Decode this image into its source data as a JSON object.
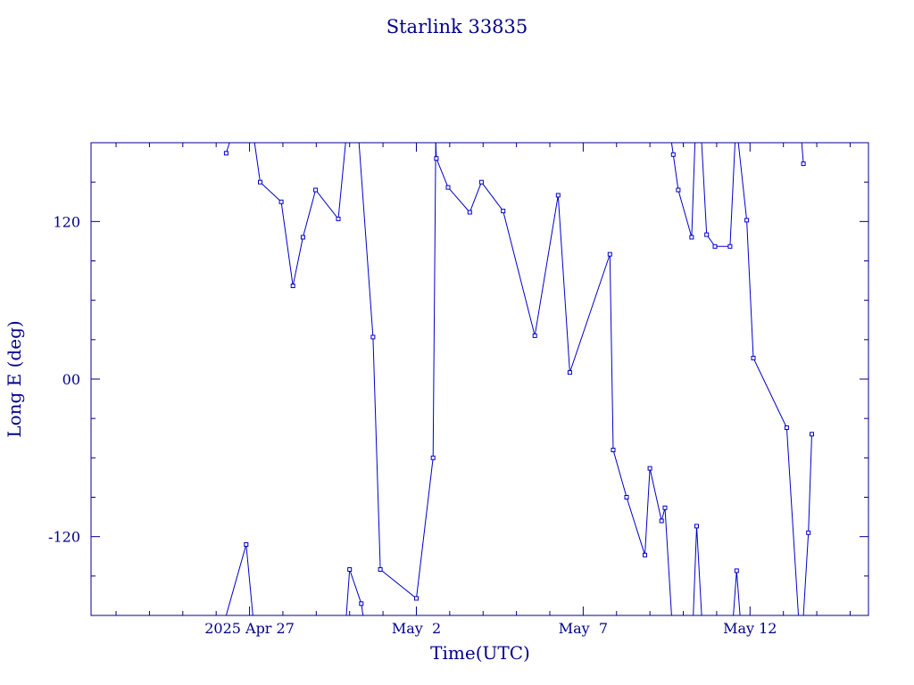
{
  "chart_data": {
    "type": "line",
    "title": "Starlink 33835",
    "xlabel": "Time(UTC)",
    "ylabel": "Long E (deg)",
    "xlim": [
      -4.75,
      18.55
    ],
    "ylim": [
      -180,
      180
    ],
    "x_ticks": [
      {
        "value": 0,
        "label": "2025 Apr 27"
      },
      {
        "value": 5,
        "label": "May  2"
      },
      {
        "value": 10,
        "label": "May  7"
      },
      {
        "value": 15,
        "label": "May 12"
      }
    ],
    "y_ticks": [
      {
        "value": 120,
        "label": "120"
      },
      {
        "value": 0,
        "label": "00"
      },
      {
        "value": -120,
        "label": "-120"
      }
    ],
    "grid": false,
    "line_color": "#0000cc",
    "axis_color": "#00008b",
    "series": [
      {
        "points": [
          [
            -0.7,
            172
          ],
          [
            -0.6,
            180
          ],
          null,
          [
            0.15,
            180
          ],
          [
            0.32,
            150
          ],
          [
            0.95,
            135
          ],
          [
            1.3,
            71
          ],
          [
            1.6,
            108
          ],
          [
            1.98,
            144
          ],
          [
            2.66,
            122
          ],
          [
            2.88,
            180
          ],
          null,
          [
            3.28,
            180
          ],
          [
            3.7,
            32
          ],
          [
            3.92,
            -145
          ],
          [
            5.0,
            -167
          ],
          [
            5.5,
            -60
          ],
          [
            5.58,
            180
          ],
          null,
          [
            5.58,
            180
          ],
          [
            5.6,
            168
          ],
          [
            5.95,
            146
          ],
          [
            6.6,
            127
          ],
          [
            6.95,
            150
          ],
          [
            7.6,
            128
          ],
          [
            8.55,
            33
          ],
          [
            9.25,
            140
          ],
          [
            9.6,
            5
          ],
          [
            10.8,
            95
          ],
          [
            10.9,
            -54
          ],
          [
            11.3,
            -90
          ],
          [
            11.85,
            -134
          ],
          [
            12.0,
            -68
          ],
          [
            12.35,
            -108
          ],
          [
            12.45,
            -98
          ],
          [
            12.65,
            -180
          ],
          null,
          [
            -0.7,
            -180
          ],
          [
            -0.1,
            -126
          ],
          [
            0.1,
            -180
          ],
          null,
          [
            2.9,
            -180
          ],
          [
            3.0,
            -145
          ],
          [
            3.35,
            -171
          ],
          [
            3.4,
            -180
          ],
          null,
          [
            12.65,
            180
          ],
          [
            12.7,
            171
          ],
          [
            12.85,
            144
          ],
          [
            13.25,
            108
          ],
          [
            13.35,
            180
          ],
          null,
          [
            13.3,
            -180
          ],
          [
            13.4,
            -112
          ],
          [
            13.55,
            -180
          ],
          null,
          [
            13.55,
            180
          ],
          [
            13.7,
            110
          ],
          [
            13.95,
            101
          ],
          [
            14.4,
            101
          ],
          [
            14.55,
            180
          ],
          null,
          [
            14.5,
            -180
          ],
          [
            14.6,
            -146
          ],
          [
            14.7,
            -180
          ],
          null,
          [
            14.65,
            180
          ],
          [
            14.9,
            121
          ],
          [
            15.1,
            16
          ],
          [
            16.1,
            -37
          ],
          [
            16.45,
            -180
          ],
          null,
          [
            16.55,
            180
          ],
          [
            16.6,
            164
          ],
          null,
          [
            16.6,
            -180
          ],
          [
            16.75,
            -117
          ],
          [
            16.85,
            -42
          ]
        ]
      }
    ]
  }
}
